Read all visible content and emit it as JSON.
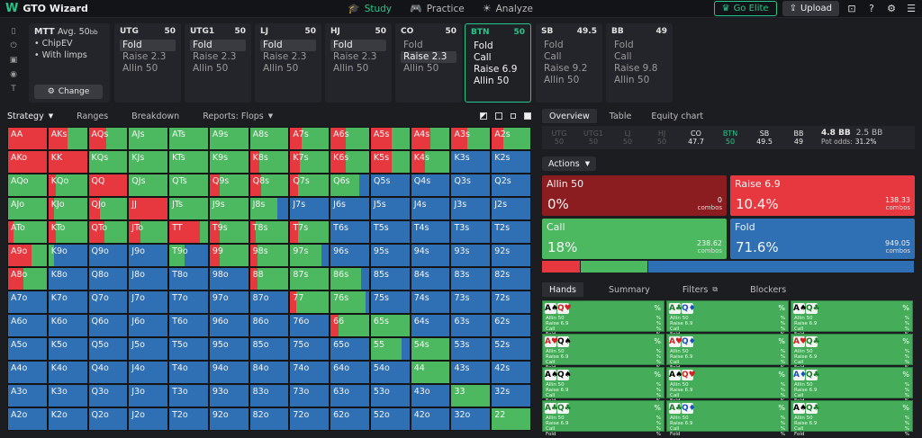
{
  "app": {
    "title": "GTO Wizard",
    "logo_glyph": "W"
  },
  "nav": {
    "tabs": [
      {
        "label": "Study",
        "icon": "graduation-cap-icon",
        "active": true
      },
      {
        "label": "Practice",
        "icon": "gamepad-icon",
        "active": false
      },
      {
        "label": "Analyze",
        "icon": "bulb-icon",
        "active": false
      }
    ],
    "go_elite": "Go Elite",
    "upload": "Upload"
  },
  "settings": {
    "format": "MTT",
    "avg_label": "Avg. 50",
    "avg_unit": "bb",
    "items": [
      "ChipEV",
      "With limps"
    ],
    "change": "Change"
  },
  "positions": [
    {
      "name": "UTG",
      "stack": "50",
      "actions": [
        "Fold",
        "Raise 2.3",
        "Allin 50"
      ],
      "selected": 0
    },
    {
      "name": "UTG1",
      "stack": "50",
      "actions": [
        "Fold",
        "Raise 2.3",
        "Allin 50"
      ],
      "selected": 0
    },
    {
      "name": "LJ",
      "stack": "50",
      "actions": [
        "Fold",
        "Raise 2.3",
        "Allin 50"
      ],
      "selected": 0
    },
    {
      "name": "HJ",
      "stack": "50",
      "actions": [
        "Fold",
        "Raise 2.3",
        "Allin 50"
      ],
      "selected": 0
    },
    {
      "name": "CO",
      "stack": "50",
      "actions": [
        "Fold",
        "Raise 2.3",
        "Allin 50"
      ],
      "selected": 1
    },
    {
      "name": "BTN",
      "stack": "50",
      "actions": [
        "Fold",
        "Call",
        "Raise 6.9",
        "Allin 50"
      ],
      "selected": -1,
      "active": true
    },
    {
      "name": "SB",
      "stack": "49.5",
      "actions": [
        "Fold",
        "Call",
        "Raise 9.2",
        "Allin 50"
      ],
      "selected": -1
    },
    {
      "name": "BB",
      "stack": "49",
      "actions": [
        "Fold",
        "Call",
        "Raise 9.8",
        "Allin 50"
      ],
      "selected": -1
    }
  ],
  "matrix_tabs": [
    "Strategy",
    "Ranges",
    "Breakdown",
    "Reports: Flops"
  ],
  "colors": {
    "raise": "#e8383f",
    "call": "#4cb860",
    "fold": "#2f6fb4",
    "allin": "#8b1c1f"
  },
  "grid": {
    "ranks": [
      "A",
      "K",
      "Q",
      "J",
      "T",
      "9",
      "8",
      "7",
      "6",
      "5",
      "4",
      "3",
      "2"
    ],
    "cells": [
      [
        "AA",
        "r100",
        "AKs",
        "r50c50",
        "AQs",
        "r45c55",
        "AJs",
        "c100",
        "ATs",
        "c100",
        "A9s",
        "c100",
        "A8s",
        "c100",
        "A7s",
        "r30c70",
        "A6s",
        "r40c60",
        "A5s",
        "r55c45",
        "A4s",
        "r50c50",
        "A3s",
        "r40c60",
        "A2s",
        "r30c70"
      ],
      [
        "AKo",
        "r100",
        "KK",
        "r100",
        "KQs",
        "c100",
        "KJs",
        "c100",
        "KTs",
        "c100",
        "K9s",
        "c100",
        "K8s",
        "r25c75",
        "K7s",
        "r25c75",
        "K6s",
        "r40c60",
        "K5s",
        "r55c45",
        "K4s",
        "r35c65",
        "K3s",
        "f100",
        "K2s",
        "f100"
      ],
      [
        "AQo",
        "c100",
        "KQo",
        "r20c80",
        "QQ",
        "r100",
        "QJs",
        "c100",
        "QTs",
        "c100",
        "Q9s",
        "r25c75",
        "Q8s",
        "r30c70",
        "Q7s",
        "r20c80",
        "Q6s",
        "c75f25",
        "Q5s",
        "f100",
        "Q4s",
        "f100",
        "Q3s",
        "f100",
        "Q2s",
        "f100"
      ],
      [
        "AJo",
        "c100",
        "KJo",
        "r15c85",
        "QJo",
        "r30c70",
        "JJ",
        "r100",
        "JTs",
        "c100",
        "J9s",
        "c100",
        "J8s",
        "c70f30",
        "J7s",
        "f100",
        "J6s",
        "f100",
        "J5s",
        "f100",
        "J4s",
        "f100",
        "J3s",
        "f100",
        "J2s",
        "f100"
      ],
      [
        "ATo",
        "r15c85",
        "KTo",
        "r20c80",
        "QTo",
        "r40c60",
        "JTo",
        "r30c70",
        "TT",
        "r80c20",
        "T9s",
        "r25c75",
        "T8s",
        "r15c85",
        "T7s",
        "r20c80",
        "T6s",
        "f100",
        "T5s",
        "f100",
        "T4s",
        "f100",
        "T3s",
        "f100",
        "T2s",
        "f100"
      ],
      [
        "A9o",
        "r60c40",
        "K9o",
        "c15f85",
        "Q9o",
        "f100",
        "J9o",
        "f100",
        "T9o",
        "c40f60",
        "99",
        "r25c75",
        "98s",
        "r20c80",
        "97s",
        "c80f20",
        "96s",
        "f100",
        "95s",
        "f100",
        "94s",
        "f100",
        "93s",
        "f100",
        "92s",
        "f100"
      ],
      [
        "A8o",
        "r40c60",
        "K8o",
        "f100",
        "Q8o",
        "f100",
        "J8o",
        "f100",
        "T8o",
        "f100",
        "98o",
        "f100",
        "88",
        "r20c80",
        "87s",
        "c100",
        "86s",
        "c80f20",
        "85s",
        "f100",
        "84s",
        "f100",
        "83s",
        "f100",
        "82s",
        "f100"
      ],
      [
        "A7o",
        "f100",
        "K7o",
        "f100",
        "Q7o",
        "f100",
        "J7o",
        "f100",
        "T7o",
        "f100",
        "97o",
        "f100",
        "87o",
        "f100",
        "77",
        "r15c85",
        "76s",
        "c90f10",
        "75s",
        "f100",
        "74s",
        "f100",
        "73s",
        "f100",
        "72s",
        "f100"
      ],
      [
        "A6o",
        "f100",
        "K6o",
        "f100",
        "Q6o",
        "f100",
        "J6o",
        "f100",
        "T6o",
        "f100",
        "96o",
        "f100",
        "86o",
        "f100",
        "76o",
        "f100",
        "66",
        "r20c80",
        "65s",
        "c100",
        "64s",
        "f100",
        "63s",
        "f100",
        "62s",
        "f100"
      ],
      [
        "A5o",
        "f100",
        "K5o",
        "f100",
        "Q5o",
        "f100",
        "J5o",
        "f100",
        "T5o",
        "f100",
        "95o",
        "f100",
        "85o",
        "f100",
        "75o",
        "f100",
        "65o",
        "f100",
        "55",
        "c80f20",
        "54s",
        "c100",
        "53s",
        "f100",
        "52s",
        "f100"
      ],
      [
        "A4o",
        "f100",
        "K4o",
        "f100",
        "Q4o",
        "f100",
        "J4o",
        "f100",
        "T4o",
        "f100",
        "94o",
        "f100",
        "84o",
        "f100",
        "74o",
        "f100",
        "64o",
        "f100",
        "54o",
        "f100",
        "44",
        "c100",
        "43s",
        "f100",
        "42s",
        "f100"
      ],
      [
        "A3o",
        "f100",
        "K3o",
        "f100",
        "Q3o",
        "f100",
        "J3o",
        "f100",
        "T3o",
        "f100",
        "93o",
        "f100",
        "83o",
        "f100",
        "73o",
        "f100",
        "63o",
        "f100",
        "53o",
        "f100",
        "43o",
        "f100",
        "33",
        "c100",
        "32s",
        "f100"
      ],
      [
        "A2o",
        "f100",
        "K2o",
        "f100",
        "Q2o",
        "f100",
        "J2o",
        "f100",
        "T2o",
        "f100",
        "92o",
        "f100",
        "82o",
        "f100",
        "72o",
        "f100",
        "62o",
        "f100",
        "52o",
        "f100",
        "42o",
        "f100",
        "32o",
        "f100",
        "22",
        "c100"
      ]
    ]
  },
  "right_tabs": [
    "Overview",
    "Table",
    "Equity chart"
  ],
  "pos_bar": {
    "players": [
      {
        "name": "UTG",
        "stack": "50",
        "state": "folded"
      },
      {
        "name": "UTG1",
        "stack": "50",
        "state": "folded"
      },
      {
        "name": "LJ",
        "stack": "50",
        "state": "folded"
      },
      {
        "name": "HJ",
        "stack": "50",
        "state": "folded"
      },
      {
        "name": "CO",
        "stack": "47.7",
        "state": "on"
      },
      {
        "name": "BTN",
        "stack": "50",
        "state": "btn"
      },
      {
        "name": "SB",
        "stack": "49.5",
        "state": "on"
      },
      {
        "name": "BB",
        "stack": "49",
        "state": "on"
      }
    ],
    "pot_main": "4.8 BB",
    "pot_side": "2.5 BB",
    "pot_odds_label": "Pot odds:",
    "pot_odds": "31.2%"
  },
  "actions_label": "Actions",
  "actions": [
    {
      "name": "Allin 50",
      "pct": "0%",
      "combos": "0",
      "color": "#8b1c1f",
      "share": 0.0
    },
    {
      "name": "Raise 6.9",
      "pct": "10.4%",
      "combos": "138.33",
      "color": "#e8383f",
      "share": 0.104
    },
    {
      "name": "Call",
      "pct": "18%",
      "combos": "238.62",
      "color": "#4cb860",
      "share": 0.18
    },
    {
      "name": "Fold",
      "pct": "71.6%",
      "combos": "949.05",
      "color": "#2f6fb4",
      "share": 0.716
    }
  ],
  "combos_label": "combos",
  "hand_tabs": [
    "Hands",
    "Summary",
    "Filters",
    "Blockers"
  ],
  "hands": [
    {
      "c1": "A♠",
      "c2": "Q♥",
      "s1": "#000",
      "s2": "#d42020"
    },
    {
      "c1": "A♣",
      "c2": "Q♦",
      "s1": "#1a7a2a",
      "s2": "#1a4fc0"
    },
    {
      "c1": "A♠",
      "c2": "Q♣",
      "s1": "#000",
      "s2": "#1a7a2a"
    },
    {
      "c1": "A♥",
      "c2": "Q♠",
      "s1": "#d42020",
      "s2": "#000"
    },
    {
      "c1": "A♥",
      "c2": "Q♦",
      "s1": "#d42020",
      "s2": "#1a4fc0"
    },
    {
      "c1": "A♥",
      "c2": "Q♣",
      "s1": "#d42020",
      "s2": "#1a7a2a"
    },
    {
      "c1": "A♠",
      "c2": "Q♠",
      "s1": "#000",
      "s2": "#000"
    },
    {
      "c1": "A♠",
      "c2": "Q♥",
      "s1": "#000",
      "s2": "#d42020"
    },
    {
      "c1": "A♦",
      "c2": "Q♣",
      "s1": "#1a4fc0",
      "s2": "#1a7a2a"
    },
    {
      "c1": "A♣",
      "c2": "Q♣",
      "s1": "#1a7a2a",
      "s2": "#1a7a2a"
    },
    {
      "c1": "A♣",
      "c2": "Q♦",
      "s1": "#1a7a2a",
      "s2": "#1a4fc0"
    },
    {
      "c1": "A♠",
      "c2": "Q♣",
      "s1": "#000",
      "s2": "#1a7a2a"
    }
  ],
  "hand_pct": "%",
  "hand_detail": [
    "Allin 50",
    "Raise 6.9",
    "Call",
    "Fold"
  ]
}
